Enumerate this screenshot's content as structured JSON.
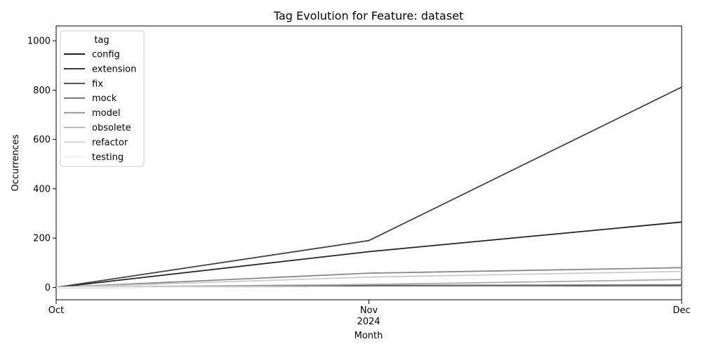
{
  "chart_data": {
    "type": "line",
    "title": "Tag Evolution for Feature: dataset",
    "xlabel": "Month",
    "ylabel": "Occurrences",
    "x": [
      "Oct",
      "Nov",
      "Dec"
    ],
    "x_year_label": "2024",
    "yticks": [
      0,
      200,
      400,
      600,
      800,
      1000
    ],
    "ylim": [
      -50,
      1060
    ],
    "grid": false,
    "legend": {
      "title": "tag",
      "placement": "top-left"
    },
    "series": [
      {
        "name": "config",
        "color": "#000000",
        "values": [
          0,
          3,
          5
        ]
      },
      {
        "name": "extension",
        "color": "#222222",
        "values": [
          0,
          145,
          265
        ]
      },
      {
        "name": "fix",
        "color": "#444444",
        "values": [
          0,
          190,
          812
        ]
      },
      {
        "name": "mock",
        "color": "#666666",
        "values": [
          0,
          8,
          10
        ]
      },
      {
        "name": "model",
        "color": "#888888",
        "values": [
          0,
          58,
          80
        ]
      },
      {
        "name": "obsolete",
        "color": "#aaaaaa",
        "values": [
          0,
          12,
          32
        ]
      },
      {
        "name": "refactor",
        "color": "#cccccc",
        "values": [
          0,
          42,
          65
        ]
      },
      {
        "name": "testing",
        "color": "#eeeeee",
        "values": [
          0,
          2,
          3
        ]
      }
    ]
  }
}
